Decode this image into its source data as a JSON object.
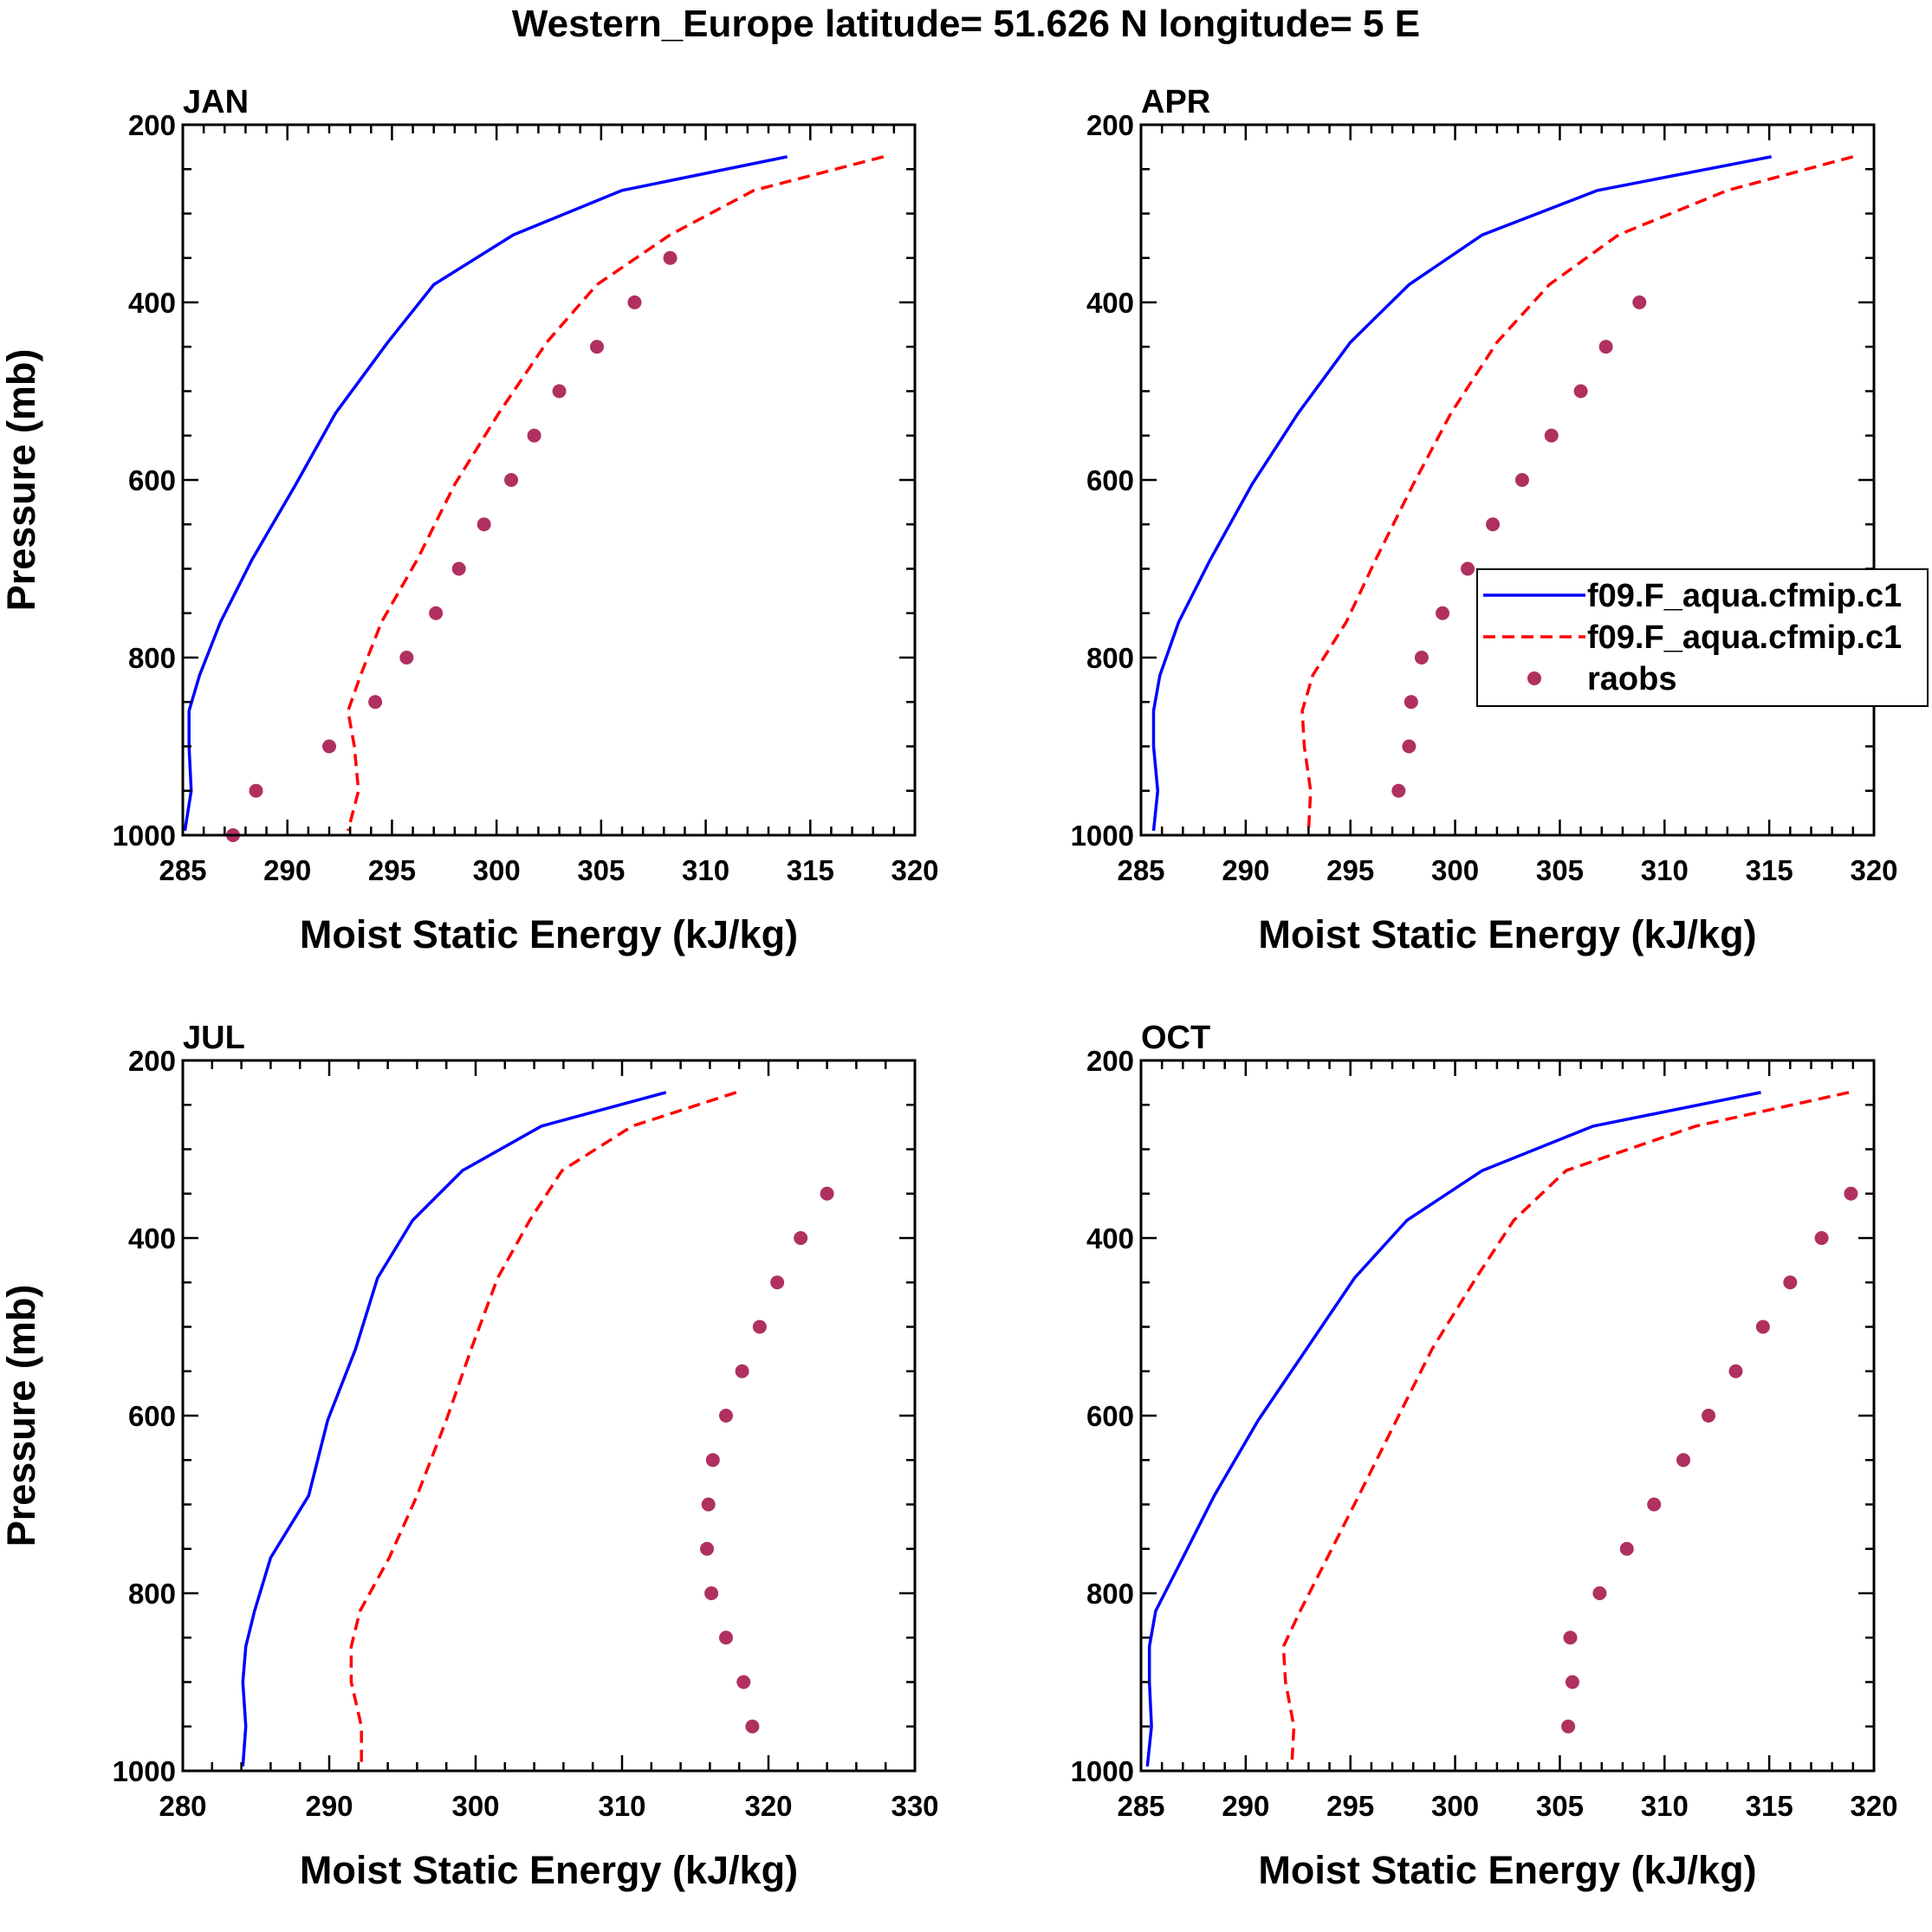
{
  "title": "Western_Europe  latitude= 51.626 N longitude= 5 E",
  "colors": {
    "model1": "#0000ff",
    "model2": "#ff0000",
    "raobs": "#b03060",
    "axis": "#000000"
  },
  "legend": {
    "entries": [
      "f09.F_aqua.cfmip.c1",
      "f09.F_aqua.cfmip.c1",
      "raobs"
    ]
  },
  "chart_data": [
    {
      "type": "line",
      "title": "JAN",
      "xlabel": "Moist Static Energy (kJ/kg)",
      "ylabel": "Pressure (mb)",
      "xlim": [
        285,
        320
      ],
      "ylim": [
        200,
        1000
      ],
      "y_inverted": true,
      "xticks": [
        285,
        290,
        295,
        300,
        305,
        310,
        315,
        320
      ],
      "yticks": [
        200,
        400,
        600,
        800,
        1000
      ],
      "series": [
        {
          "name": "f09.F_aqua.cfmip.c1",
          "style": "solid",
          "x": [
            313.9,
            306.0,
            300.8,
            297.0,
            294.8,
            292.3,
            290.4,
            288.3,
            286.8,
            285.8,
            285.3,
            285.3,
            285.4,
            285.1
          ],
          "y": [
            236,
            274,
            324,
            380,
            445,
            525,
            605,
            690,
            760,
            820,
            860,
            900,
            950,
            995
          ]
        },
        {
          "name": "f09.F_aqua.cfmip.c1",
          "style": "dashed",
          "x": [
            318.5,
            312.3,
            308.3,
            304.8,
            302.4,
            300.1,
            298.0,
            296.2,
            294.5,
            293.5,
            292.9,
            293.2,
            293.4,
            292.9
          ],
          "y": [
            236,
            274,
            324,
            380,
            445,
            525,
            605,
            690,
            760,
            820,
            860,
            900,
            950,
            995
          ]
        },
        {
          "name": "raobs",
          "style": "markers",
          "x": [
            308.3,
            306.6,
            304.8,
            303.0,
            301.8,
            300.7,
            299.4,
            298.2,
            297.1,
            295.7,
            294.2,
            292.0,
            288.5,
            287.4
          ],
          "y": [
            350,
            400,
            450,
            500,
            550,
            600,
            650,
            700,
            750,
            800,
            850,
            900,
            950,
            1000
          ]
        }
      ]
    },
    {
      "type": "line",
      "title": "APR",
      "xlabel": "Moist Static Energy (kJ/kg)",
      "ylabel": "",
      "xlim": [
        285,
        320
      ],
      "ylim": [
        200,
        1000
      ],
      "y_inverted": true,
      "xticks": [
        285,
        290,
        295,
        300,
        305,
        310,
        315,
        320
      ],
      "yticks": [
        200,
        400,
        600,
        800,
        1000
      ],
      "series": [
        {
          "name": "f09.F_aqua.cfmip.c1",
          "style": "solid",
          "x": [
            315.1,
            306.8,
            301.3,
            297.8,
            295.0,
            292.5,
            290.3,
            288.3,
            286.8,
            285.9,
            285.6,
            285.6,
            285.8,
            285.6
          ],
          "y": [
            236,
            274,
            324,
            380,
            445,
            525,
            605,
            690,
            760,
            820,
            860,
            900,
            950,
            995
          ]
        },
        {
          "name": "f09.F_aqua.cfmip.c1",
          "style": "dashed",
          "x": [
            319.0,
            313.0,
            307.8,
            304.5,
            302.0,
            299.8,
            298.0,
            296.2,
            294.8,
            293.2,
            292.7,
            292.8,
            293.1,
            293.0
          ],
          "y": [
            236,
            274,
            324,
            380,
            445,
            525,
            605,
            690,
            760,
            820,
            860,
            900,
            950,
            995
          ]
        },
        {
          "name": "raobs",
          "style": "markers",
          "x": [
            308.8,
            307.2,
            306.0,
            304.6,
            303.2,
            301.8,
            300.6,
            299.4,
            298.4,
            297.9,
            297.8,
            297.3
          ],
          "y": [
            400,
            450,
            500,
            550,
            600,
            650,
            700,
            750,
            800,
            850,
            900,
            950
          ]
        }
      ]
    },
    {
      "type": "line",
      "title": "JUL",
      "xlabel": "Moist Static Energy (kJ/kg)",
      "ylabel": "Pressure (mb)",
      "xlim": [
        280,
        330
      ],
      "ylim": [
        200,
        1000
      ],
      "y_inverted": true,
      "xticks": [
        280,
        290,
        300,
        310,
        320,
        330
      ],
      "yticks": [
        200,
        400,
        600,
        800,
        1000
      ],
      "series": [
        {
          "name": "f09.F_aqua.cfmip.c1",
          "style": "solid",
          "x": [
            313.0,
            304.5,
            299.1,
            295.7,
            293.3,
            291.8,
            289.9,
            288.6,
            286.0,
            284.9,
            284.3,
            284.1,
            284.3,
            284.1
          ],
          "y": [
            236,
            274,
            324,
            380,
            445,
            525,
            605,
            690,
            760,
            820,
            860,
            900,
            950,
            995
          ]
        },
        {
          "name": "f09.F_aqua.cfmip.c1",
          "style": "dashed",
          "x": [
            317.8,
            310.7,
            305.9,
            303.7,
            301.5,
            299.7,
            298.0,
            296.0,
            294.1,
            292.1,
            291.5,
            291.5,
            292.2,
            292.2
          ],
          "y": [
            236,
            274,
            324,
            380,
            445,
            525,
            605,
            690,
            760,
            820,
            860,
            900,
            950,
            995
          ]
        },
        {
          "name": "raobs",
          "style": "markers",
          "x": [
            324.0,
            322.2,
            320.6,
            319.4,
            318.2,
            317.1,
            316.2,
            315.9,
            315.8,
            316.1,
            317.1,
            318.3,
            318.9
          ],
          "y": [
            350,
            400,
            450,
            500,
            550,
            600,
            650,
            700,
            750,
            800,
            850,
            900,
            950
          ]
        }
      ]
    },
    {
      "type": "line",
      "title": "OCT",
      "xlabel": "Moist Static Energy (kJ/kg)",
      "ylabel": "",
      "xlim": [
        285,
        320
      ],
      "ylim": [
        200,
        1000
      ],
      "y_inverted": true,
      "xticks": [
        285,
        290,
        295,
        300,
        305,
        310,
        315,
        320
      ],
      "yticks": [
        200,
        400,
        600,
        800,
        1000
      ],
      "series": [
        {
          "name": "f09.F_aqua.cfmip.c1",
          "style": "solid",
          "x": [
            314.6,
            306.6,
            301.3,
            297.7,
            295.2,
            292.9,
            290.6,
            288.5,
            287.0,
            285.7,
            285.4,
            285.4,
            285.5,
            285.3
          ],
          "y": [
            236,
            274,
            324,
            380,
            445,
            525,
            605,
            690,
            760,
            820,
            860,
            900,
            950,
            995
          ]
        },
        {
          "name": "f09.F_aqua.cfmip.c1",
          "style": "dashed",
          "x": [
            318.8,
            311.5,
            305.3,
            302.8,
            301.0,
            298.9,
            297.2,
            295.4,
            293.9,
            292.6,
            291.8,
            291.9,
            292.3,
            292.2
          ],
          "y": [
            236,
            274,
            324,
            380,
            445,
            525,
            605,
            690,
            760,
            820,
            860,
            900,
            950,
            995
          ]
        },
        {
          "name": "raobs",
          "style": "markers",
          "x": [
            318.9,
            317.5,
            316.0,
            314.7,
            313.4,
            312.1,
            310.9,
            309.5,
            308.2,
            306.9,
            305.5,
            305.6,
            305.4
          ],
          "y": [
            350,
            400,
            450,
            500,
            550,
            600,
            650,
            700,
            750,
            800,
            850,
            900,
            950
          ]
        }
      ]
    }
  ]
}
